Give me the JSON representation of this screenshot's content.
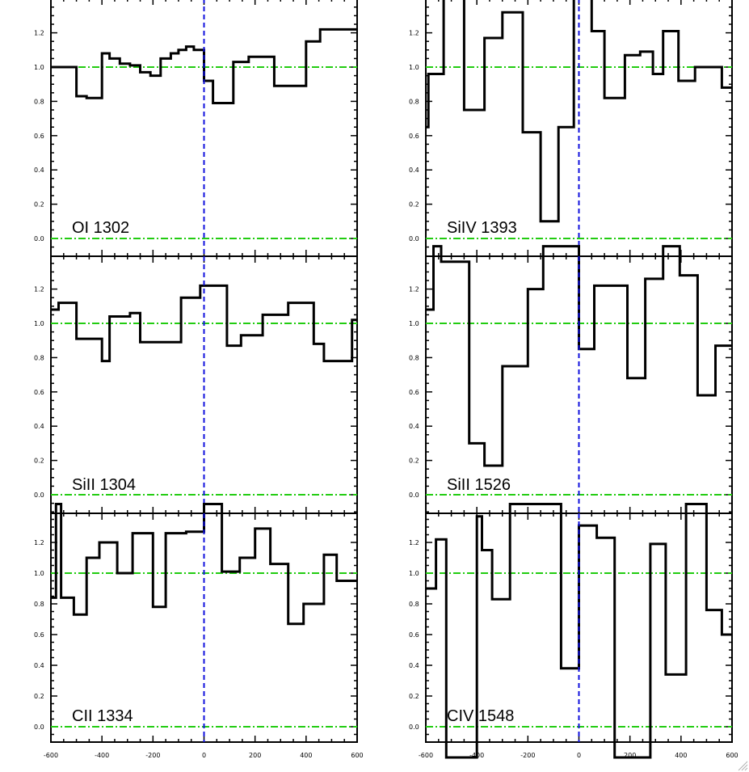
{
  "chart_data": [
    {
      "type": "line",
      "step": true,
      "label": "OI 1302",
      "xlim": [
        -600,
        600
      ],
      "ylim": [
        -0.1,
        1.4
      ],
      "x_ticks": [
        "-600",
        "-400",
        "-200",
        "0",
        "200",
        "400",
        "600"
      ],
      "y_ticks": [
        "0.0",
        "0.2",
        "0.4",
        "0.6",
        "0.8",
        "1.0",
        "1.2"
      ],
      "reference_lines": {
        "zero_flux": 0.0,
        "continuum": 1.0,
        "zero_velocity": 0
      },
      "bin_edges": [
        -600,
        -540,
        -500,
        -460,
        -400,
        -370,
        -330,
        -290,
        -250,
        -210,
        -170,
        -130,
        -100,
        -70,
        -40,
        0,
        35,
        75,
        115,
        175,
        225,
        275,
        330,
        400,
        455,
        505,
        545,
        575,
        605
      ],
      "values": [
        1.0,
        1.0,
        0.83,
        0.82,
        1.08,
        1.05,
        1.02,
        1.01,
        0.97,
        0.95,
        1.05,
        1.08,
        1.1,
        1.12,
        1.1,
        0.92,
        0.79,
        0.79,
        1.03,
        1.06,
        1.06,
        0.89,
        0.89,
        1.15,
        1.22,
        1.22,
        1.22,
        1.22
      ]
    },
    {
      "type": "line",
      "step": true,
      "label": "SiIV 1393",
      "xlim": [
        -600,
        600
      ],
      "ylim": [
        -0.1,
        1.4
      ],
      "x_ticks": [
        "-600",
        "-400",
        "-200",
        "0",
        "200",
        "400",
        "600"
      ],
      "y_ticks": [
        "0.0",
        "0.2",
        "0.4",
        "0.6",
        "0.8",
        "1.0",
        "1.2"
      ],
      "reference_lines": {
        "zero_flux": 0.0,
        "continuum": 1.0,
        "zero_velocity": 0
      },
      "bin_edges": [
        -600,
        -590,
        -550,
        -530,
        -480,
        -450,
        -400,
        -370,
        -330,
        -300,
        -250,
        -220,
        -180,
        -150,
        -110,
        -80,
        -40,
        -20,
        0,
        20,
        50,
        100,
        160,
        180,
        240,
        290,
        330,
        390,
        420,
        455,
        520,
        560,
        590,
        600
      ],
      "values": [
        0.65,
        0.96,
        0.96,
        1.45,
        1.45,
        0.75,
        0.75,
        1.17,
        1.17,
        1.32,
        1.32,
        0.62,
        0.62,
        0.1,
        0.1,
        0.65,
        0.65,
        1.45,
        1.45,
        1.45,
        1.21,
        0.82,
        0.82,
        1.07,
        1.09,
        0.96,
        1.21,
        0.92,
        0.92,
        1.0,
        1.0,
        0.88,
        0.88
      ]
    },
    {
      "type": "line",
      "step": true,
      "label": "SiII 1304",
      "xlim": [
        -600,
        600
      ],
      "ylim": [
        -0.1,
        1.4
      ],
      "x_ticks": [
        "-600",
        "-400",
        "-200",
        "0",
        "200",
        "400",
        "600"
      ],
      "y_ticks": [
        "0.0",
        "0.2",
        "0.4",
        "0.6",
        "0.8",
        "1.0",
        "1.2"
      ],
      "reference_lines": {
        "zero_flux": 0.0,
        "continuum": 1.0,
        "zero_velocity": 0
      },
      "bin_edges": [
        -600,
        -570,
        -540,
        -500,
        -460,
        -400,
        -370,
        -330,
        -290,
        -250,
        -210,
        -170,
        -130,
        -90,
        -50,
        -15,
        20,
        90,
        145,
        195,
        230,
        275,
        330,
        385,
        430,
        470,
        510,
        580,
        605
      ],
      "values": [
        1.08,
        1.12,
        1.12,
        0.91,
        0.91,
        0.78,
        1.04,
        1.04,
        1.06,
        0.89,
        0.89,
        0.89,
        0.89,
        1.15,
        1.15,
        1.22,
        1.22,
        0.87,
        0.93,
        0.93,
        1.05,
        1.05,
        1.12,
        1.12,
        0.88,
        0.78,
        0.78,
        1.02
      ]
    },
    {
      "type": "line",
      "step": true,
      "label": "SiII 1526",
      "xlim": [
        -600,
        600
      ],
      "ylim": [
        -0.1,
        1.4
      ],
      "x_ticks": [
        "-600",
        "-400",
        "-200",
        "0",
        "200",
        "400",
        "600"
      ],
      "y_ticks": [
        "0.0",
        "0.2",
        "0.4",
        "0.6",
        "0.8",
        "1.0",
        "1.2"
      ],
      "reference_lines": {
        "zero_flux": 0.0,
        "continuum": 1.0,
        "zero_velocity": 0
      },
      "bin_edges": [
        -600,
        -570,
        -540,
        -500,
        -430,
        -370,
        -300,
        -200,
        -140,
        -100,
        -40,
        0,
        60,
        120,
        190,
        260,
        290,
        330,
        395,
        465,
        535,
        565,
        600
      ],
      "values": [
        1.08,
        1.45,
        1.36,
        1.36,
        0.3,
        0.17,
        0.75,
        1.2,
        1.45,
        1.45,
        1.45,
        0.85,
        1.22,
        1.22,
        0.68,
        1.26,
        1.26,
        1.45,
        1.28,
        0.58,
        0.87,
        0.87
      ]
    },
    {
      "type": "line",
      "step": true,
      "label": "CII 1334",
      "xlim": [
        -600,
        600
      ],
      "ylim": [
        -0.1,
        1.4
      ],
      "x_ticks": [
        "-600",
        "-400",
        "-200",
        "0",
        "200",
        "400",
        "600"
      ],
      "y_ticks": [
        "0.0",
        "0.2",
        "0.4",
        "0.6",
        "0.8",
        "1.0",
        "1.2"
      ],
      "reference_lines": {
        "zero_flux": 0.0,
        "continuum": 1.0,
        "zero_velocity": 0
      },
      "bin_edges": [
        -600,
        -580,
        -560,
        -510,
        -460,
        -410,
        -340,
        -280,
        -200,
        -150,
        -80,
        -70,
        -10,
        0,
        70,
        140,
        200,
        260,
        330,
        390,
        420,
        470,
        520,
        555,
        585,
        600
      ],
      "values": [
        0.84,
        1.45,
        0.84,
        0.73,
        1.1,
        1.2,
        1.0,
        1.26,
        0.78,
        1.26,
        1.26,
        1.27,
        1.27,
        1.45,
        1.01,
        1.1,
        1.29,
        1.06,
        0.67,
        0.8,
        0.8,
        1.12,
        0.95,
        0.95,
        0.95
      ]
    },
    {
      "type": "line",
      "step": true,
      "label": "CIV 1548",
      "xlim": [
        -600,
        600
      ],
      "ylim": [
        -0.1,
        1.4
      ],
      "x_ticks": [
        "-600",
        "-400",
        "-200",
        "0",
        "200",
        "400",
        "600"
      ],
      "y_ticks": [
        "0.0",
        "0.2",
        "0.4",
        "0.6",
        "0.8",
        "1.0",
        "1.2"
      ],
      "reference_lines": {
        "zero_flux": 0.0,
        "continuum": 1.0,
        "zero_velocity": 0
      },
      "bin_edges": [
        -600,
        -560,
        -520,
        -480,
        -440,
        -400,
        -380,
        -340,
        -270,
        -200,
        -150,
        -70,
        -10,
        0,
        70,
        140,
        200,
        280,
        340,
        380,
        420,
        500,
        560,
        600
      ],
      "values": [
        0.9,
        1.22,
        -0.2,
        -0.2,
        -0.2,
        1.37,
        1.15,
        0.83,
        1.45,
        1.45,
        1.45,
        0.38,
        0.38,
        1.31,
        1.23,
        -0.2,
        -0.2,
        1.19,
        0.34,
        0.34,
        1.45,
        0.76,
        0.6
      ]
    }
  ]
}
